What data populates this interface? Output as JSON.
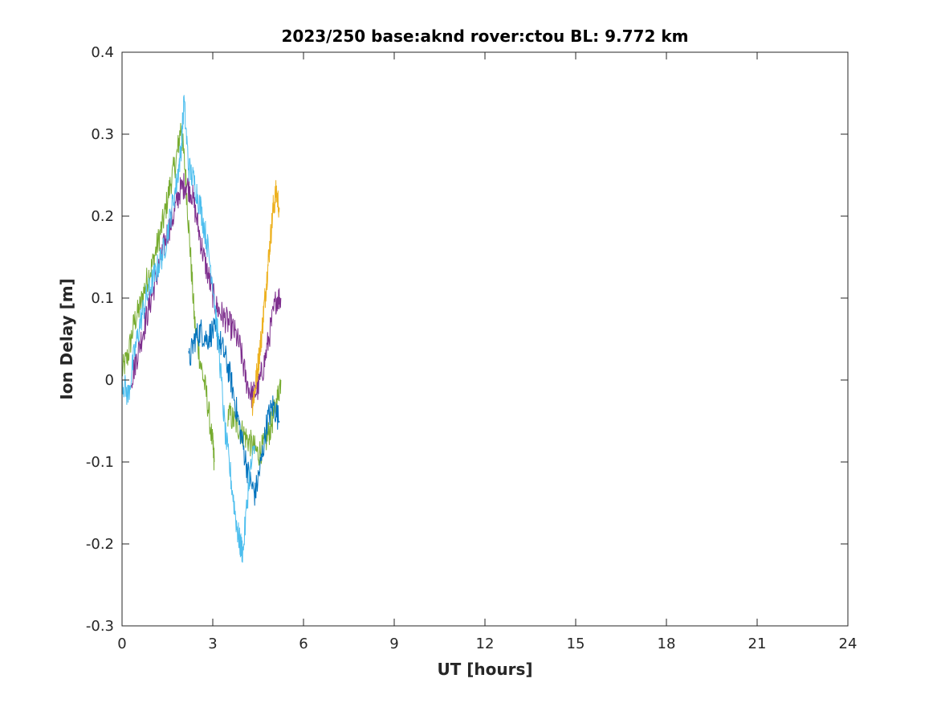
{
  "chart_data": {
    "type": "line",
    "title": "2023/250 base:aknd rover:ctou BL:  9.772 km",
    "xlabel": "UT [hours]",
    "ylabel": "Ion Delay [m]",
    "xlim": [
      0,
      24
    ],
    "ylim": [
      -0.3,
      0.4
    ],
    "x_ticks": [
      0,
      3,
      6,
      9,
      12,
      15,
      18,
      21,
      24
    ],
    "x_tick_labels": [
      "0",
      "3",
      "6",
      "9",
      "12",
      "15",
      "18",
      "21",
      "24"
    ],
    "y_ticks": [
      -0.3,
      -0.2,
      -0.1,
      0,
      0.1,
      0.2,
      0.3,
      0.4
    ],
    "y_tick_labels": [
      "-0.3",
      "-0.2",
      "-0.1",
      "0",
      "0.1",
      "0.2",
      "0.3",
      "0.4"
    ],
    "grid": false,
    "legend": "none",
    "series": [
      {
        "color": "#77ac30",
        "x": [
          0.0,
          0.2,
          0.4,
          0.6,
          0.8,
          1.0,
          1.2,
          1.4,
          1.6,
          1.8,
          1.95,
          2.1,
          2.25,
          2.4,
          2.6,
          2.8,
          3.0,
          3.05
        ],
        "y": [
          0.01,
          0.03,
          0.07,
          0.09,
          0.12,
          0.14,
          0.17,
          0.2,
          0.24,
          0.27,
          0.31,
          0.25,
          0.16,
          0.07,
          0.02,
          -0.02,
          -0.08,
          -0.1
        ]
      },
      {
        "color": "#77ac30",
        "x": [
          3.5,
          3.7,
          3.9,
          4.1,
          4.3,
          4.5,
          4.7,
          4.9,
          5.1,
          5.25
        ],
        "y": [
          -0.04,
          -0.05,
          -0.06,
          -0.07,
          -0.08,
          -0.09,
          -0.08,
          -0.06,
          -0.03,
          0.0
        ]
      },
      {
        "color": "#7e2f8e",
        "x": [
          0.3,
          0.5,
          0.7,
          0.9,
          1.1,
          1.3,
          1.5,
          1.7,
          1.9,
          2.1,
          2.3,
          2.5,
          2.7,
          2.9,
          3.1,
          3.3,
          3.5,
          3.7,
          3.9,
          4.1,
          4.3,
          4.5,
          4.7,
          4.9,
          5.1,
          5.25
        ],
        "y": [
          0.0,
          0.03,
          0.06,
          0.09,
          0.12,
          0.15,
          0.18,
          0.2,
          0.23,
          0.24,
          0.23,
          0.19,
          0.15,
          0.12,
          0.09,
          0.08,
          0.07,
          0.06,
          0.04,
          0.0,
          -0.02,
          -0.01,
          0.02,
          0.06,
          0.1,
          0.1
        ]
      },
      {
        "color": "#edb120",
        "x": [
          4.3,
          4.4,
          4.5,
          4.6,
          4.7,
          4.8,
          4.9,
          5.0,
          5.1,
          5.2
        ],
        "y": [
          -0.03,
          -0.01,
          0.02,
          0.05,
          0.09,
          0.13,
          0.17,
          0.21,
          0.23,
          0.21
        ]
      },
      {
        "color": "#0072bd",
        "x": [
          2.2,
          2.4,
          2.6,
          2.8,
          3.0,
          3.2,
          3.4,
          3.6,
          3.8,
          4.0,
          4.2,
          4.4,
          4.6,
          4.8,
          5.0,
          5.2
        ],
        "y": [
          0.02,
          0.05,
          0.06,
          0.05,
          0.06,
          0.05,
          0.03,
          0.0,
          -0.04,
          -0.08,
          -0.12,
          -0.14,
          -0.1,
          -0.05,
          -0.03,
          -0.05
        ]
      },
      {
        "color": "#4dbeee",
        "x": [
          0.0,
          0.2,
          0.4,
          0.6,
          0.8,
          1.0,
          1.2,
          1.4,
          1.6,
          1.8,
          1.95,
          2.05,
          2.2,
          2.4,
          2.6,
          2.8,
          3.0,
          3.2,
          3.4,
          3.6,
          3.8,
          3.9,
          4.0,
          4.2,
          4.4
        ],
        "y": [
          0.0,
          -0.02,
          0.03,
          0.07,
          0.1,
          0.12,
          0.14,
          0.16,
          0.2,
          0.24,
          0.28,
          0.34,
          0.26,
          0.24,
          0.21,
          0.17,
          0.12,
          0.04,
          -0.06,
          -0.12,
          -0.18,
          -0.2,
          -0.21,
          -0.12,
          -0.08
        ]
      }
    ]
  }
}
